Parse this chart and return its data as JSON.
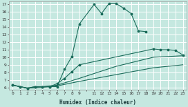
{
  "xlabel": "Humidex (Indice chaleur)",
  "bg_color": "#c5e8e0",
  "grid_color": "#ffffff",
  "line_color": "#1a6b5a",
  "xlim": [
    -0.5,
    23.5
  ],
  "ylim": [
    5.7,
    17.4
  ],
  "yticks": [
    6,
    7,
    8,
    9,
    10,
    11,
    12,
    13,
    14,
    15,
    16,
    17
  ],
  "curve1_x": [
    0,
    1,
    2,
    3,
    4,
    5,
    6,
    7,
    8,
    9,
    11,
    12,
    13,
    14,
    15,
    16,
    17,
    18
  ],
  "curve1_y": [
    6.3,
    6.1,
    5.9,
    6.1,
    6.1,
    6.1,
    6.1,
    8.4,
    10.1,
    14.4,
    17.0,
    15.8,
    17.1,
    17.1,
    16.5,
    15.8,
    13.5,
    13.4
  ],
  "curve2_x": [
    0,
    1,
    2,
    3,
    4,
    5,
    6,
    7,
    8,
    9,
    19,
    20,
    21,
    22,
    23
  ],
  "curve2_y": [
    6.3,
    6.1,
    5.9,
    6.1,
    6.1,
    6.1,
    6.5,
    7.2,
    8.1,
    9.0,
    11.1,
    11.0,
    11.0,
    10.9,
    10.3
  ],
  "curve3_x": [
    0,
    2,
    4,
    6,
    9,
    14,
    19,
    23
  ],
  "curve3_y": [
    6.3,
    5.9,
    6.1,
    6.3,
    7.2,
    8.8,
    10.0,
    10.2
  ],
  "curve4_x": [
    0,
    2,
    4,
    6,
    9,
    14,
    19,
    23
  ],
  "curve4_y": [
    6.3,
    5.9,
    6.0,
    6.2,
    6.8,
    7.7,
    8.6,
    9.0
  ]
}
